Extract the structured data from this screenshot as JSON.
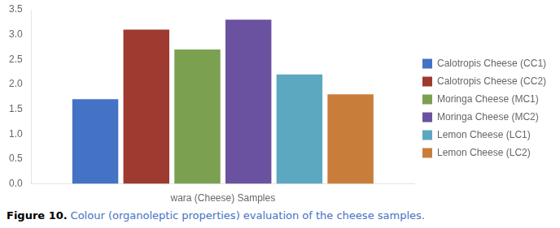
{
  "chart_data": {
    "type": "bar",
    "categories": [
      "wara (Cheese) Samples"
    ],
    "series": [
      {
        "name": "Calotropis Cheese (CC1)",
        "color": "#4472C4",
        "values": [
          1.7
        ]
      },
      {
        "name": "Calotropis Cheese (CC2)",
        "color": "#9E3A2F",
        "values": [
          3.1
        ]
      },
      {
        "name": "Moringa Cheese (MC1)",
        "color": "#7BA050",
        "values": [
          2.7
        ]
      },
      {
        "name": "Moringa Cheese (MC2)",
        "color": "#6B52A0",
        "values": [
          3.3
        ]
      },
      {
        "name": "Lemon Cheese (LC1)",
        "color": "#5BA8C0",
        "values": [
          2.2
        ]
      },
      {
        "name": "Lemon Cheese (LC2)",
        "color": "#C87E3A",
        "values": [
          1.8
        ]
      }
    ],
    "ylim": [
      0,
      3.5
    ],
    "yticks": [
      {
        "value": 0,
        "label": "0.0"
      },
      0.5,
      {
        "value": 1,
        "label": "1.0"
      },
      1.5,
      {
        "value": 2,
        "label": "2.0"
      },
      2.5,
      {
        "value": 3,
        "label": "3.0"
      },
      3.5
    ],
    "grid": false,
    "legend": "right",
    "annotations": [
      {
        "text": "Figure 10.",
        "color": "#000000"
      },
      {
        "text": "Colour (organoleptic properties) evaluation of the cheese samples.",
        "color": "#4472C4"
      }
    ]
  }
}
